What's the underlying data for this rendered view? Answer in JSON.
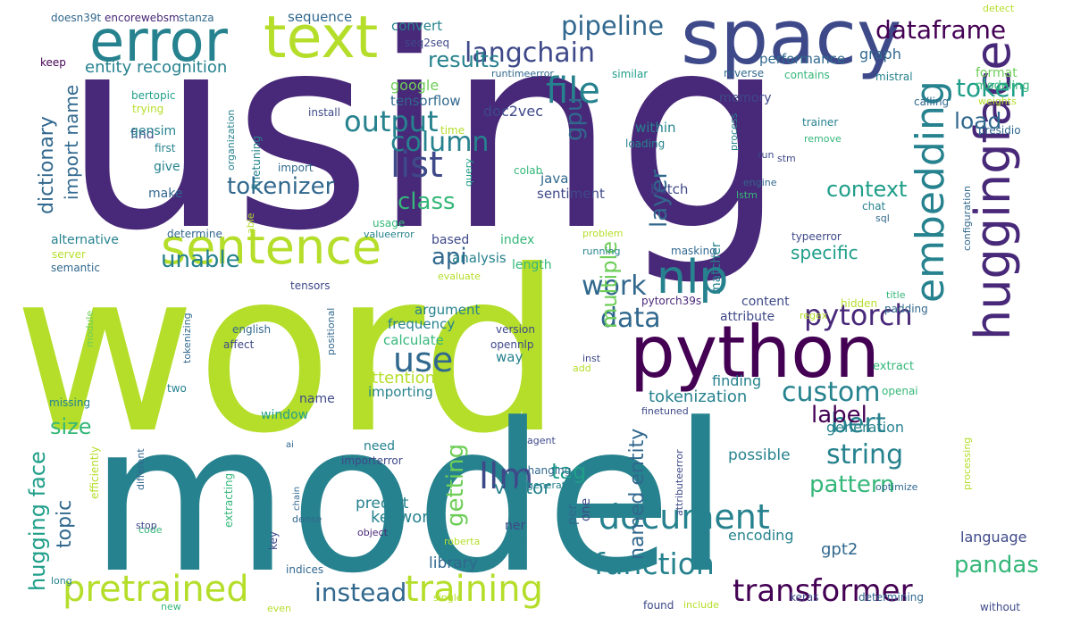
{
  "palette": {
    "dark_purple": "#440154",
    "indigo": "#482878",
    "purple_blue": "#3e4989",
    "blue": "#31688e",
    "teal_blue": "#26828e",
    "teal": "#1f9e89",
    "green": "#35b779",
    "lime": "#6ece58",
    "yellow_green": "#b5de2b"
  },
  "words": [
    {
      "text": "using",
      "color": "#482878"
    },
    {
      "text": "word",
      "color": "#b5de2b"
    },
    {
      "text": "model",
      "color": "#26828e"
    },
    {
      "text": "python",
      "color": "#440154"
    },
    {
      "text": "spacy",
      "color": "#3e4989"
    },
    {
      "text": "text",
      "color": "#b5de2b"
    },
    {
      "text": "error",
      "color": "#26828e"
    },
    {
      "text": "sentence",
      "color": "#b5de2b"
    },
    {
      "text": "huggingface",
      "color": "#482878"
    },
    {
      "text": "embedding",
      "color": "#26828e"
    },
    {
      "text": "nlp",
      "color": "#26828e"
    },
    {
      "text": "transformer",
      "color": "#440154"
    },
    {
      "text": "pretrained",
      "color": "#b5de2b"
    },
    {
      "text": "training",
      "color": "#b5de2b"
    },
    {
      "text": "document",
      "color": "#26828e"
    },
    {
      "text": "llm",
      "color": "#3e4989"
    },
    {
      "text": "langchain",
      "color": "#3e4989"
    },
    {
      "text": "list",
      "color": "#3e4989"
    },
    {
      "text": "pytorch",
      "color": "#482878"
    },
    {
      "text": "output",
      "color": "#26828e"
    },
    {
      "text": "file",
      "color": "#26828e"
    },
    {
      "text": "pipeline",
      "color": "#31688e"
    },
    {
      "text": "dataframe",
      "color": "#440154"
    },
    {
      "text": "token",
      "color": "#1f9e89"
    },
    {
      "text": "results",
      "color": "#26828e"
    },
    {
      "text": "column",
      "color": "#26828e"
    },
    {
      "text": "use",
      "color": "#31688e"
    },
    {
      "text": "data",
      "color": "#31688e"
    },
    {
      "text": "work",
      "color": "#31688e"
    },
    {
      "text": "custom",
      "color": "#26828e"
    },
    {
      "text": "bert",
      "color": "#26828e"
    },
    {
      "text": "string",
      "color": "#26828e"
    },
    {
      "text": "function",
      "color": "#26828e"
    },
    {
      "text": "instead",
      "color": "#31688e"
    },
    {
      "text": "pandas",
      "color": "#35b779"
    },
    {
      "text": "tokenizer",
      "color": "#31688e"
    },
    {
      "text": "unable",
      "color": "#26828e"
    },
    {
      "text": "label",
      "color": "#440154"
    },
    {
      "text": "layer",
      "color": "#31688e"
    },
    {
      "text": "load",
      "color": "#31688e"
    },
    {
      "text": "context",
      "color": "#1f9e89"
    },
    {
      "text": "gpu",
      "color": "#31688e"
    },
    {
      "text": "class",
      "color": "#35b779"
    },
    {
      "text": "api",
      "color": "#31688e"
    },
    {
      "text": "multiple",
      "color": "#6ece58"
    },
    {
      "text": "getting",
      "color": "#6ece58"
    },
    {
      "text": "pattern",
      "color": "#35b779"
    },
    {
      "text": "named entity",
      "color": "#31688e"
    },
    {
      "text": "tag",
      "color": "#1f9e89"
    },
    {
      "text": "topic",
      "color": "#31688e"
    },
    {
      "text": "size",
      "color": "#35b779"
    },
    {
      "text": "hugging face",
      "color": "#1f9e89"
    },
    {
      "text": "dictionary",
      "color": "#31688e"
    },
    {
      "text": "import name",
      "color": "#31688e"
    },
    {
      "text": "entity recognition",
      "color": "#26828e"
    },
    {
      "text": "specific",
      "color": "#1f9e89"
    },
    {
      "text": "attention",
      "color": "#b5de2b"
    },
    {
      "text": "tokenization",
      "color": "#26828e"
    },
    {
      "text": "gpt2",
      "color": "#31688e"
    },
    {
      "text": "keyword",
      "color": "#26828e"
    },
    {
      "text": "predict",
      "color": "#26828e"
    },
    {
      "text": "vector",
      "color": "#26828e"
    },
    {
      "text": "library",
      "color": "#31688e"
    },
    {
      "text": "encoding",
      "color": "#26828e"
    },
    {
      "text": "language",
      "color": "#3e4989"
    },
    {
      "text": "generation",
      "color": "#26828e"
    },
    {
      "text": "possible",
      "color": "#26828e"
    },
    {
      "text": "finding",
      "color": "#26828e"
    },
    {
      "text": "graph",
      "color": "#31688e"
    },
    {
      "text": "performance",
      "color": "#31688e"
    },
    {
      "text": "memory",
      "color": "#3e4989"
    },
    {
      "text": "google",
      "color": "#6ece58"
    },
    {
      "text": "tensorflow",
      "color": "#31688e"
    },
    {
      "text": "doc2vec",
      "color": "#3e4989"
    },
    {
      "text": "sequence",
      "color": "#31688e"
    },
    {
      "text": "convert",
      "color": "#26828e"
    },
    {
      "text": "sentiment",
      "color": "#3e4989"
    },
    {
      "text": "java",
      "color": "#31688e"
    },
    {
      "text": "batch",
      "color": "#3e4989"
    },
    {
      "text": "within",
      "color": "#26828e"
    },
    {
      "text": "analysis",
      "color": "#26828e"
    },
    {
      "text": "based",
      "color": "#3e4989"
    },
    {
      "text": "index",
      "color": "#35b779"
    },
    {
      "text": "length",
      "color": "#35b779"
    },
    {
      "text": "argument",
      "color": "#26828e"
    },
    {
      "text": "frequency",
      "color": "#26828e"
    },
    {
      "text": "calculate",
      "color": "#35b779"
    },
    {
      "text": "way",
      "color": "#26828e"
    },
    {
      "text": "importing",
      "color": "#26828e"
    },
    {
      "text": "name",
      "color": "#3e4989"
    },
    {
      "text": "window",
      "color": "#1f9e89"
    },
    {
      "text": "need",
      "color": "#26828e"
    },
    {
      "text": "ner",
      "color": "#3e4989"
    },
    {
      "text": "per",
      "color": "#31688e"
    },
    {
      "text": "one",
      "color": "#3e4989"
    },
    {
      "text": "content",
      "color": "#3e4989"
    },
    {
      "text": "attribute",
      "color": "#3e4989"
    },
    {
      "text": "matcher",
      "color": "#26828e"
    },
    {
      "text": "format",
      "color": "#6ece58"
    },
    {
      "text": "modeling",
      "color": "#35b779"
    },
    {
      "text": "reverse",
      "color": "#31688e"
    },
    {
      "text": "contains",
      "color": "#35b779"
    },
    {
      "text": "mistral",
      "color": "#26828e"
    },
    {
      "text": "detect",
      "color": "#b5de2b"
    },
    {
      "text": "keep",
      "color": "#440154"
    },
    {
      "text": "doesn39t",
      "color": "#31688e"
    },
    {
      "text": "encorewebsm",
      "color": "#482878"
    },
    {
      "text": "stanza",
      "color": "#31688e"
    },
    {
      "text": "seq2seq",
      "color": "#3e4989"
    },
    {
      "text": "runtimeerror",
      "color": "#31688e"
    },
    {
      "text": "similar",
      "color": "#1f9e89"
    },
    {
      "text": "find",
      "color": "#3e4989"
    },
    {
      "text": "bertopic",
      "color": "#1f9e89"
    },
    {
      "text": "trying",
      "color": "#b5de2b"
    },
    {
      "text": "gensim",
      "color": "#26828e"
    },
    {
      "text": "first",
      "color": "#26828e"
    },
    {
      "text": "give",
      "color": "#26828e"
    },
    {
      "text": "make",
      "color": "#31688e"
    },
    {
      "text": "alternative",
      "color": "#26828e"
    },
    {
      "text": "server",
      "color": "#b5de2b"
    },
    {
      "text": "semantic",
      "color": "#31688e"
    },
    {
      "text": "organization",
      "color": "#26828e"
    },
    {
      "text": "finetuning",
      "color": "#26828e"
    },
    {
      "text": "install",
      "color": "#3e4989"
    },
    {
      "text": "time",
      "color": "#b5de2b"
    },
    {
      "text": "import",
      "color": "#31688e"
    },
    {
      "text": "query",
      "color": "#1f9e89"
    },
    {
      "text": "colab",
      "color": "#35b779"
    },
    {
      "text": "able",
      "color": "#b5de2b"
    },
    {
      "text": "usage",
      "color": "#35b779"
    },
    {
      "text": "determine",
      "color": "#31688e"
    },
    {
      "text": "valueerror",
      "color": "#26828e"
    },
    {
      "text": "tensors",
      "color": "#3e4989"
    },
    {
      "text": "evaluate",
      "color": "#b5de2b"
    },
    {
      "text": "problem",
      "color": "#b5de2b"
    },
    {
      "text": "masking",
      "color": "#31688e"
    },
    {
      "text": "running",
      "color": "#26828e"
    },
    {
      "text": "regex",
      "color": "#b5de2b"
    },
    {
      "text": "hidden",
      "color": "#b5de2b"
    },
    {
      "text": "pytorch39s",
      "color": "#482878"
    },
    {
      "text": "version",
      "color": "#3e4989"
    },
    {
      "text": "opennlp",
      "color": "#3e4989"
    },
    {
      "text": "positional",
      "color": "#31688e"
    },
    {
      "text": "english",
      "color": "#31688e"
    },
    {
      "text": "affect",
      "color": "#3e4989"
    },
    {
      "text": "tokenizing",
      "color": "#31688e"
    },
    {
      "text": "module",
      "color": "#6ece58"
    },
    {
      "text": "two",
      "color": "#26828e"
    },
    {
      "text": "missing",
      "color": "#26828e"
    },
    {
      "text": "inst",
      "color": "#3e4989"
    },
    {
      "text": "add",
      "color": "#b5de2b"
    },
    {
      "text": "stm",
      "color": "#3e4989"
    },
    {
      "text": "process",
      "color": "#26828e"
    },
    {
      "text": "trainer",
      "color": "#26828e"
    },
    {
      "text": "remove",
      "color": "#35b779"
    },
    {
      "text": "loading",
      "color": "#26828e"
    },
    {
      "text": "run",
      "color": "#3e4989"
    },
    {
      "text": "engine",
      "color": "#31688e"
    },
    {
      "text": "lstm",
      "color": "#35b779"
    },
    {
      "text": "chat",
      "color": "#26828e"
    },
    {
      "text": "sql",
      "color": "#31688e"
    },
    {
      "text": "calling",
      "color": "#31688e"
    },
    {
      "text": "weights",
      "color": "#b5de2b"
    },
    {
      "text": "presidio",
      "color": "#31688e"
    },
    {
      "text": "configuration",
      "color": "#31688e"
    },
    {
      "text": "typeerror",
      "color": "#3e4989"
    },
    {
      "text": "title",
      "color": "#35b779"
    },
    {
      "text": "padding",
      "color": "#31688e"
    },
    {
      "text": "extract",
      "color": "#35b779"
    },
    {
      "text": "openai",
      "color": "#35b779"
    },
    {
      "text": "finetuned",
      "color": "#3e4989"
    },
    {
      "text": "optimize",
      "color": "#31688e"
    },
    {
      "text": "processing",
      "color": "#b5de2b"
    },
    {
      "text": "keras",
      "color": "#3e4989"
    },
    {
      "text": "determining",
      "color": "#31688e"
    },
    {
      "text": "without",
      "color": "#3e4989"
    },
    {
      "text": "found",
      "color": "#3e4989"
    },
    {
      "text": "include",
      "color": "#b5de2b"
    },
    {
      "text": "agent",
      "color": "#3e4989"
    },
    {
      "text": "changing",
      "color": "#31688e"
    },
    {
      "text": "generate",
      "color": "#26828e"
    },
    {
      "text": "attributeerror",
      "color": "#3e4989"
    },
    {
      "text": "importerror",
      "color": "#3e4989"
    },
    {
      "text": "ai",
      "color": "#31688e"
    },
    {
      "text": "chain",
      "color": "#31688e"
    },
    {
      "text": "different",
      "color": "#31688e"
    },
    {
      "text": "extracting",
      "color": "#35b779"
    },
    {
      "text": "efficiently",
      "color": "#b5de2b"
    },
    {
      "text": "code",
      "color": "#35b779"
    },
    {
      "text": "stop",
      "color": "#3e4989"
    },
    {
      "text": "dense",
      "color": "#31688e"
    },
    {
      "text": "object",
      "color": "#482878"
    },
    {
      "text": "roberta",
      "color": "#b5de2b"
    },
    {
      "text": "key",
      "color": "#3e4989"
    },
    {
      "text": "indices",
      "color": "#31688e"
    },
    {
      "text": "single",
      "color": "#b5de2b"
    },
    {
      "text": "long",
      "color": "#26828e"
    },
    {
      "text": "new",
      "color": "#35b779"
    },
    {
      "text": "even",
      "color": "#b5de2b"
    }
  ]
}
